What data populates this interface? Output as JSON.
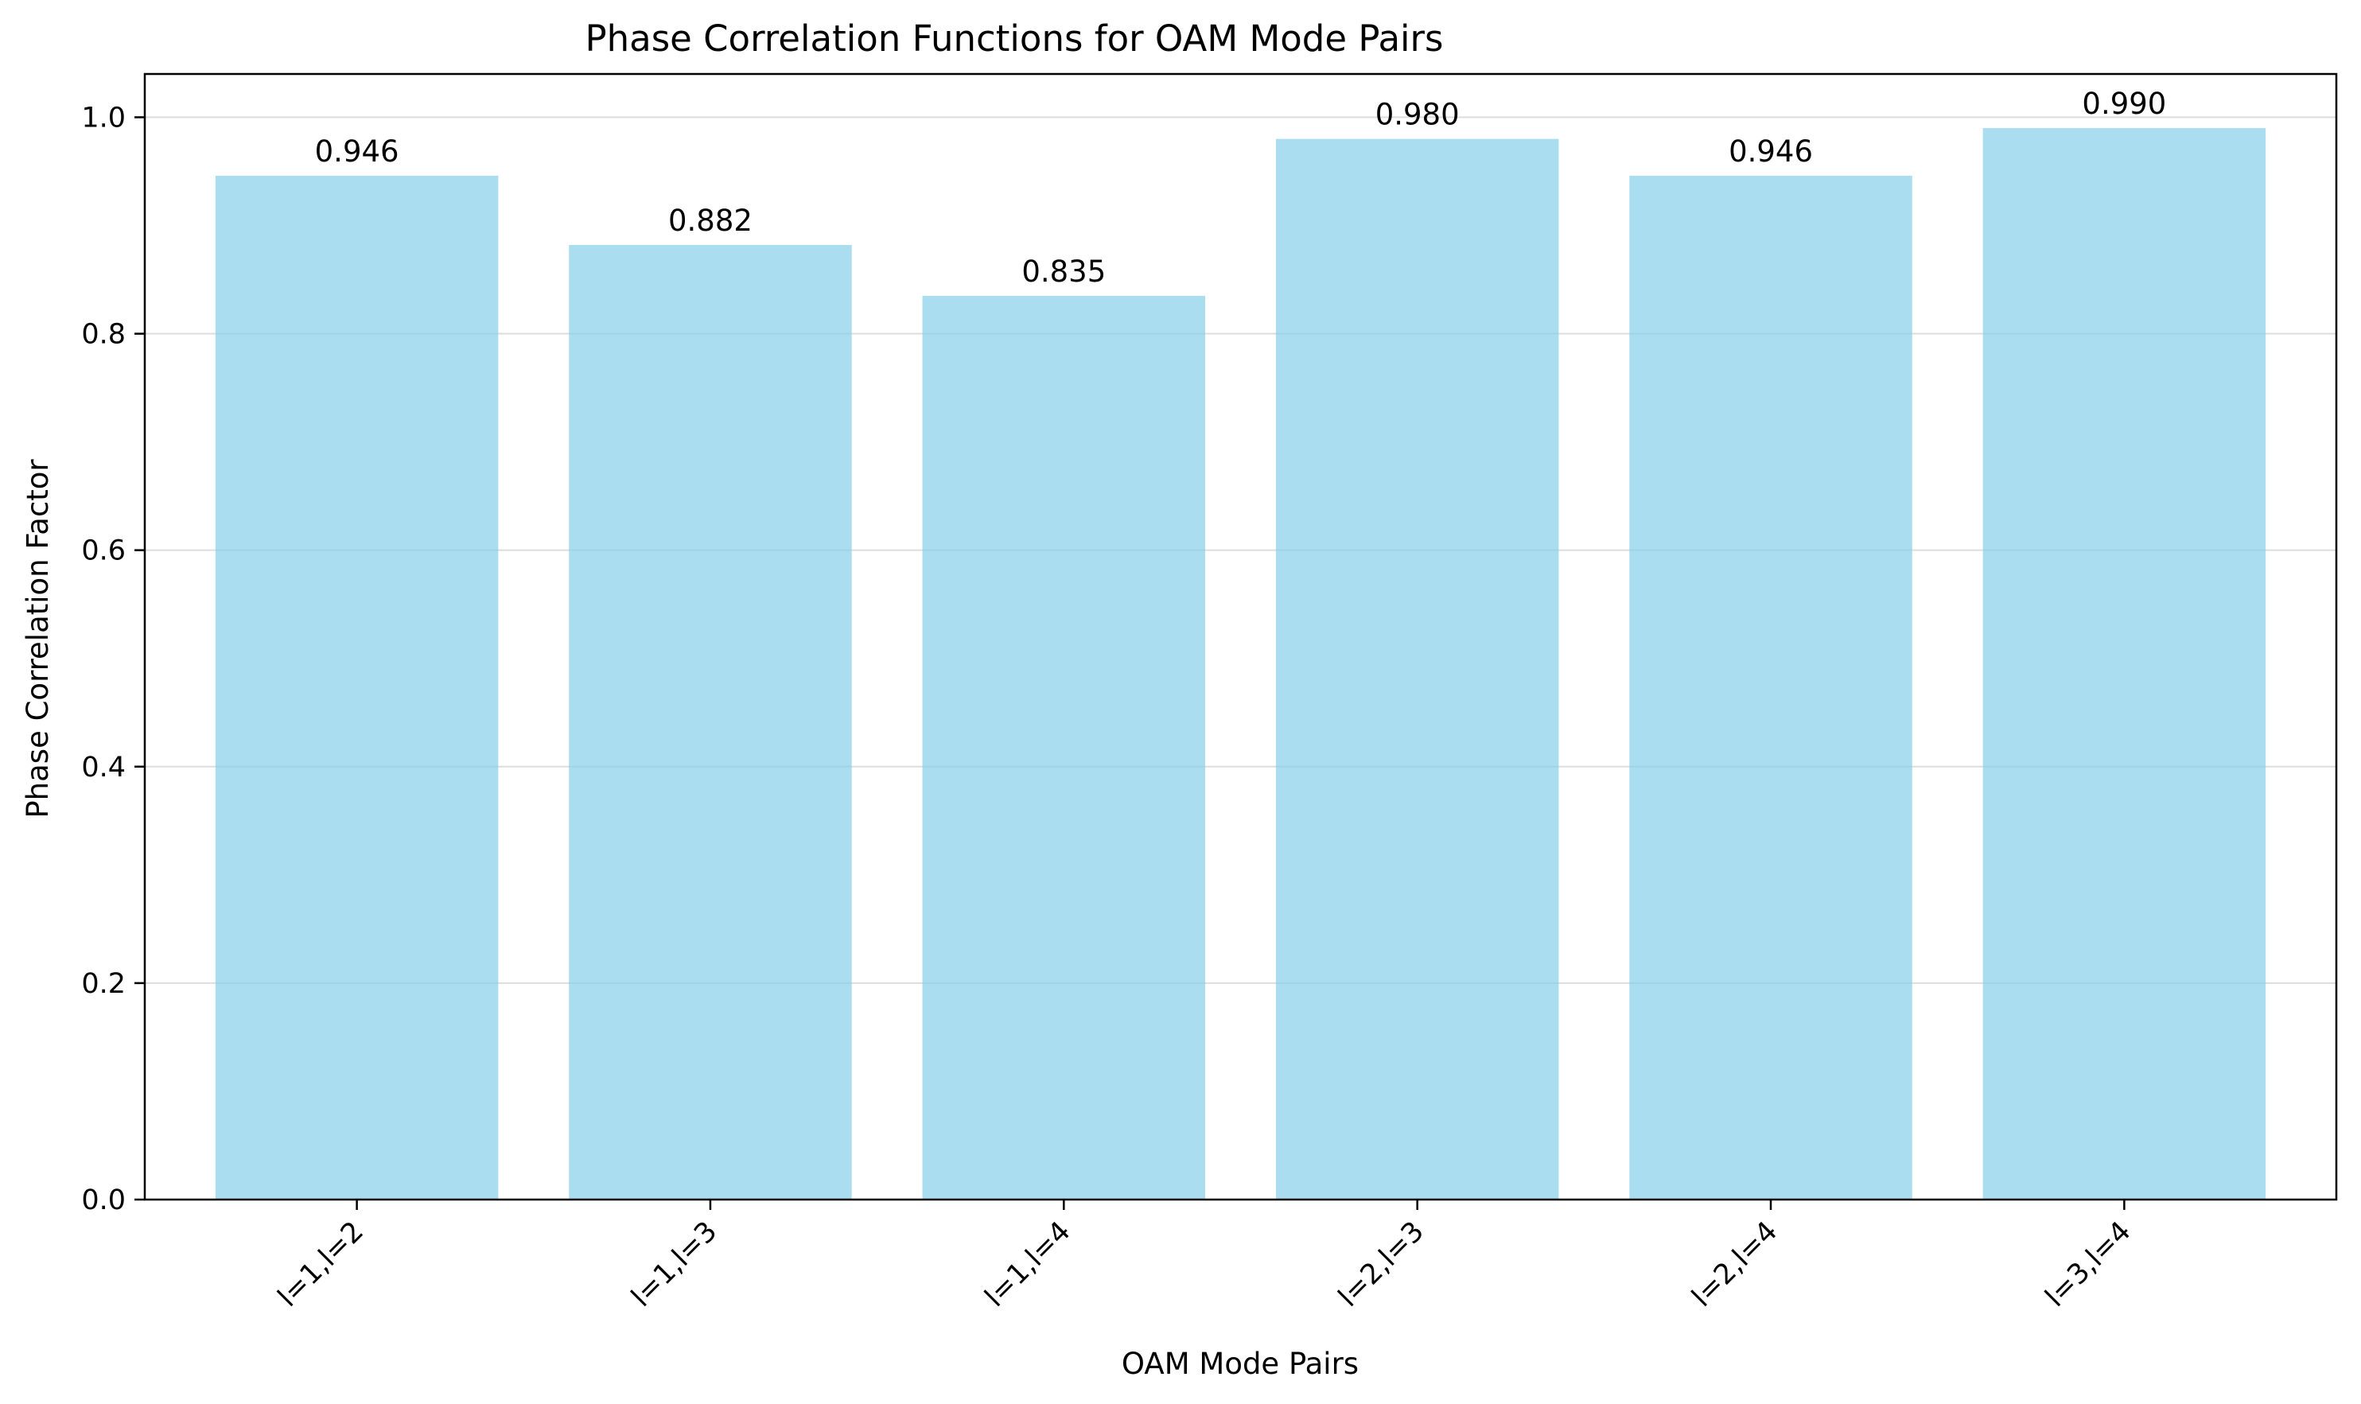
{
  "chart_data": {
    "type": "bar",
    "title": "Phase Correlation Functions for OAM Mode Pairs",
    "xlabel": "OAM Mode Pairs",
    "ylabel": "Phase Correlation Factor",
    "categories": [
      "l=1,l=2",
      "l=1,l=3",
      "l=1,l=4",
      "l=2,l=3",
      "l=2,l=4",
      "l=3,l=4"
    ],
    "values": [
      0.946,
      0.882,
      0.835,
      0.98,
      0.946,
      0.99
    ],
    "data_labels": [
      "0.946",
      "0.882",
      "0.835",
      "0.980",
      "0.946",
      "0.990"
    ],
    "ylim": [
      0,
      1.04
    ],
    "yticks": [
      0.0,
      0.2,
      0.4,
      0.6,
      0.8,
      1.0
    ],
    "ytick_labels": [
      "0.0",
      "0.2",
      "0.4",
      "0.6",
      "0.8",
      "1.0"
    ],
    "grid": "horizontal",
    "legend": "none",
    "colors": {
      "bar": "#87ceeb",
      "bar_opacity": 0.7,
      "grid": "#dddddd",
      "axis": "#000000"
    }
  }
}
